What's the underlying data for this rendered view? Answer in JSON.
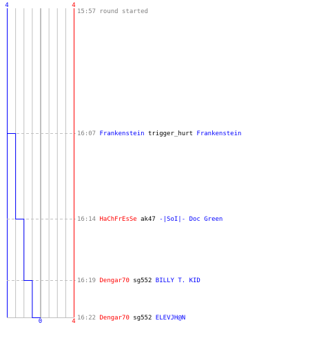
{
  "chart_data": {
    "type": "line",
    "title": "",
    "xlabel": "",
    "ylabel": "",
    "x_axis": {
      "min": -4,
      "max": 4,
      "top_left_label": "4",
      "top_right_label": "4",
      "bottom_center_label": "0",
      "bottom_right_label": "4"
    },
    "colors": {
      "blue_team": "#0000ff",
      "red_team": "#ff0000",
      "grid": "#c0c0c0",
      "center": "#808080",
      "time": "#808080",
      "event_gray": "#808080",
      "dash": "#c0c0c0"
    },
    "series": [
      {
        "points": [
          {
            "time": "15:57",
            "score": -4
          },
          {
            "time": "16:07",
            "score": -3
          },
          {
            "time": "16:14",
            "score": -2
          },
          {
            "time": "16:19",
            "score": -1
          },
          {
            "time": "16:22",
            "score": 0
          }
        ]
      }
    ],
    "events": [
      {
        "time": "15:57",
        "parts": [
          {
            "text": "round started",
            "color": "gray"
          }
        ]
      },
      {
        "time": "16:07",
        "parts": [
          {
            "text": "Frankenstein",
            "color": "blue"
          },
          {
            "text": "trigger_hurt",
            "color": "black"
          },
          {
            "text": "Frankenstein",
            "color": "blue"
          }
        ]
      },
      {
        "time": "16:14",
        "parts": [
          {
            "text": "HaChFrEsSe",
            "color": "red"
          },
          {
            "text": "ak47",
            "color": "black"
          },
          {
            "text": "-|SoI|- Doc Green",
            "color": "blue"
          }
        ]
      },
      {
        "time": "16:19",
        "parts": [
          {
            "text": "Dengar70",
            "color": "red"
          },
          {
            "text": "sg552",
            "color": "black"
          },
          {
            "text": "BILLY T. KID",
            "color": "blue"
          }
        ]
      },
      {
        "time": "16:22",
        "parts": [
          {
            "text": "Dengar70",
            "color": "red"
          },
          {
            "text": "sg552",
            "color": "black"
          },
          {
            "text": "ELEVJH@N",
            "color": "blue"
          }
        ]
      }
    ]
  }
}
